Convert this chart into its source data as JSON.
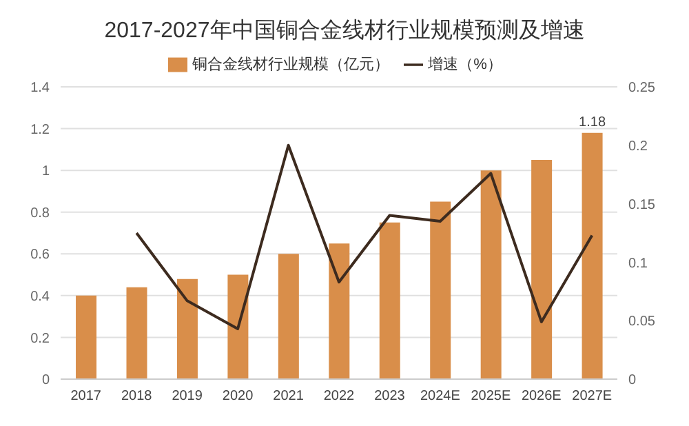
{
  "chart_data": {
    "type": "bar",
    "title": "2017-2027年中国铜合金线材行业规模预测及增速",
    "categories": [
      "2017",
      "2018",
      "2019",
      "2020",
      "2021",
      "2022",
      "2023",
      "2024E",
      "2025E",
      "2026E",
      "2027E"
    ],
    "series": [
      {
        "name": "铜合金线材行业规模（亿元）",
        "color": "#d98e4a",
        "values": [
          0.4,
          0.44,
          0.48,
          0.5,
          0.6,
          0.65,
          0.75,
          0.85,
          1.0,
          1.05,
          1.18
        ],
        "value_labels": [
          null,
          null,
          null,
          null,
          null,
          null,
          null,
          null,
          null,
          null,
          "1.18"
        ]
      },
      {
        "name": "增速（%）",
        "type": "line",
        "axis": "y2",
        "color": "#3d2b1f",
        "values": [
          null,
          0.125,
          0.067,
          0.043,
          0.2,
          0.083,
          0.14,
          0.135,
          0.176,
          0.049,
          0.123
        ]
      }
    ],
    "ylim": [
      0,
      1.4
    ],
    "yticks": [
      0,
      0.2,
      0.4,
      0.6,
      0.8,
      1,
      1.2,
      1.4
    ],
    "y2lim": [
      0,
      0.25
    ],
    "y2ticks": [
      0,
      0.05,
      0.1,
      0.15,
      0.2,
      0.25
    ],
    "grid": "y",
    "legend": "top",
    "marker": "none"
  }
}
